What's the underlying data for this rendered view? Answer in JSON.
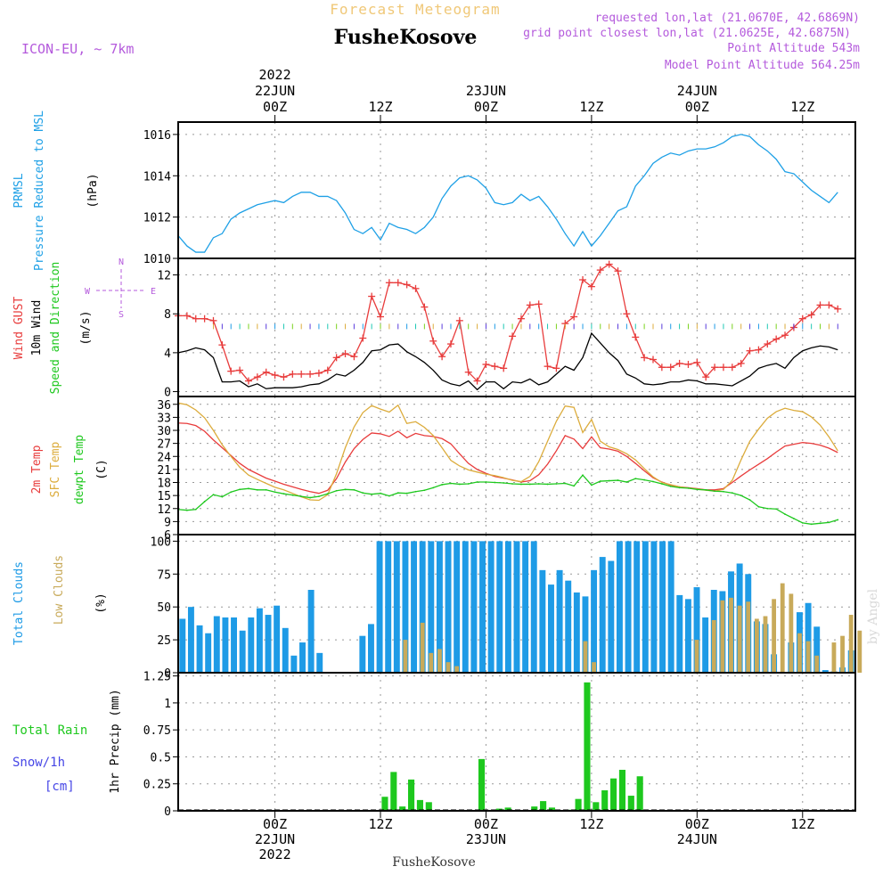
{
  "header": {
    "supertitle": "Forecast Meteogram",
    "station": "FusheKosove",
    "model": "ICON-EU, ~ 7km",
    "requested": "requested lon,lat (21.0670E, 42.6869N)",
    "closest": "grid point closest lon,lat (21.0625E, 42.6875N)",
    "point_alt": "Point Altitude 543m",
    "model_alt": "Model Point Altitude 564.25m",
    "footer_station": "FusheKosove",
    "credit": "by Angel"
  },
  "time_axis": {
    "top": [
      {
        "t": 0,
        "lines": [
          "2022",
          "22JUN",
          "00Z"
        ]
      },
      {
        "t": 12,
        "lines": [
          "12Z"
        ]
      },
      {
        "t": 24,
        "lines": [
          "23JUN",
          "00Z"
        ]
      },
      {
        "t": 36,
        "lines": [
          "12Z"
        ]
      },
      {
        "t": 48,
        "lines": [
          "24JUN",
          "00Z"
        ]
      },
      {
        "t": 60,
        "lines": [
          "12Z"
        ]
      }
    ],
    "bottom": [
      {
        "t": 0,
        "lines": [
          "00Z",
          "22JUN",
          "2022"
        ]
      },
      {
        "t": 12,
        "lines": [
          "12Z"
        ]
      },
      {
        "t": 24,
        "lines": [
          "00Z",
          "23JUN"
        ]
      },
      {
        "t": 36,
        "lines": [
          "12Z"
        ]
      },
      {
        "t": 48,
        "lines": [
          "00Z",
          "24JUN"
        ]
      },
      {
        "t": 60,
        "lines": [
          "12Z"
        ]
      }
    ],
    "range_hours": [
      -11,
      66
    ]
  },
  "panel_labels": {
    "pressure": [
      "PRMSL",
      "Pressure Reduced to MSL"
    ],
    "pressure_unit": "(hPa)",
    "wind_gust": "Wind GUST",
    "wind_10m": "10m Wind",
    "wind_dir": "Speed and Direction",
    "wind_unit": "(m/s)",
    "compass": {
      "n": "N",
      "s": "S",
      "w": "W",
      "e": "E"
    },
    "temp_2m": "2m Temp",
    "temp_sfc": "SFC Temp",
    "temp_dew": "dewpt Temp",
    "temp_unit": "(C)",
    "cloud_total": "Total Clouds",
    "cloud_low": "Low Clouds",
    "cloud_unit": "(%)",
    "rain_total": "Total  Rain",
    "rain_snow": "Snow/1h",
    "rain_snow_unit": "[cm]",
    "rain_axis": "1hr Precip (mm)"
  },
  "chart_data": [
    {
      "type": "line",
      "panel": "pressure",
      "ylim": [
        1010,
        1016.6
      ],
      "yticks": [
        1010,
        1012,
        1014,
        1016
      ],
      "series": [
        {
          "name": "PRMSL",
          "color": "#1ea0e6",
          "values": [
            1011.1,
            1010.6,
            1010.3,
            1010.3,
            1011.0,
            1011.2,
            1011.9,
            1012.2,
            1012.4,
            1012.6,
            1012.7,
            1012.8,
            1012.7,
            1013.0,
            1013.2,
            1013.2,
            1013.0,
            1013.0,
            1012.8,
            1012.2,
            1011.4,
            1011.2,
            1011.5,
            1010.9,
            1011.7,
            1011.5,
            1011.4,
            1011.2,
            1011.5,
            1012.0,
            1012.9,
            1013.5,
            1013.9,
            1014.0,
            1013.8,
            1013.4,
            1012.7,
            1012.6,
            1012.7,
            1013.1,
            1012.8,
            1013.0,
            1012.5,
            1011.9,
            1011.2,
            1010.6,
            1011.3,
            1010.6,
            1011.1,
            1011.7,
            1012.3,
            1012.5,
            1013.5,
            1014.0,
            1014.6,
            1014.9,
            1015.1,
            1015.0,
            1015.2,
            1015.3,
            1015.3,
            1015.4,
            1015.6,
            1015.9,
            1016.0,
            1015.9,
            1015.5,
            1015.2,
            1014.8,
            1014.2,
            1014.1,
            1013.7,
            1013.3,
            1013.0,
            1012.7,
            1013.2
          ]
        }
      ]
    },
    {
      "type": "line",
      "panel": "wind",
      "ylim": [
        -0.5,
        13.7
      ],
      "yticks": [
        0,
        4,
        8,
        12
      ],
      "series": [
        {
          "name": "Wind GUST",
          "color": "#e83c3c",
          "values": [
            7.8,
            7.8,
            7.5,
            7.5,
            7.3,
            4.8,
            2.1,
            2.2,
            1.1,
            1.5,
            2.0,
            1.7,
            1.5,
            1.8,
            1.8,
            1.8,
            1.9,
            2.2,
            3.5,
            3.9,
            3.6,
            5.5,
            9.8,
            7.7,
            11.2,
            11.2,
            11.0,
            10.6,
            8.7,
            5.2,
            3.6,
            4.9,
            7.3,
            2.0,
            1.1,
            2.8,
            2.6,
            2.4,
            5.7,
            7.5,
            8.9,
            9.0,
            2.6,
            2.4,
            7.0,
            7.7,
            11.5,
            10.8,
            12.5,
            13.1,
            12.4,
            8.0,
            5.6,
            3.5,
            3.3,
            2.5,
            2.5,
            2.9,
            2.8,
            3.0,
            1.5,
            2.5,
            2.5,
            2.5,
            2.9,
            4.2,
            4.3,
            4.9,
            5.4,
            5.8,
            6.6,
            7.5,
            7.9,
            8.9,
            8.9,
            8.5
          ]
        },
        {
          "name": "10m Wind",
          "color": "#000000",
          "values": [
            4.0,
            4.2,
            4.5,
            4.3,
            3.5,
            1.0,
            1.0,
            1.1,
            0.5,
            0.8,
            0.3,
            0.4,
            0.4,
            0.4,
            0.5,
            0.7,
            0.8,
            1.2,
            1.8,
            1.6,
            2.2,
            3.0,
            4.2,
            4.3,
            4.8,
            4.9,
            4.1,
            3.6,
            3.0,
            2.2,
            1.2,
            0.8,
            0.6,
            1.1,
            0.2,
            1.0,
            1.0,
            0.3,
            1.0,
            0.9,
            1.3,
            0.7,
            1.0,
            1.8,
            2.6,
            2.2,
            3.5,
            6.0,
            5.0,
            4.0,
            3.2,
            1.8,
            1.4,
            0.8,
            0.7,
            0.8,
            1.0,
            1.0,
            1.2,
            1.1,
            0.8,
            0.8,
            0.7,
            0.6,
            1.1,
            1.6,
            2.4,
            2.7,
            2.9,
            2.4,
            3.5,
            4.2,
            4.5,
            4.7,
            4.6,
            4.3
          ]
        }
      ]
    },
    {
      "type": "line",
      "panel": "temperature",
      "ylim": [
        6,
        37.8
      ],
      "yticks": [
        6,
        9,
        12,
        15,
        18,
        21,
        24,
        27,
        30,
        33,
        36
      ],
      "series": [
        {
          "name": "2m Temp",
          "color": "#e83c3c",
          "values": [
            31.7,
            31.6,
            31.1,
            29.8,
            27.8,
            26.0,
            24.2,
            22.4,
            21.0,
            20.0,
            19.0,
            18.3,
            17.6,
            17.0,
            16.4,
            15.9,
            15.5,
            16.2,
            18.9,
            22.7,
            25.8,
            27.9,
            29.4,
            29.2,
            28.6,
            29.8,
            28.3,
            29.3,
            28.8,
            28.6,
            28.1,
            26.9,
            24.6,
            22.4,
            21.0,
            20.1,
            19.4,
            19.0,
            18.6,
            18.1,
            18.4,
            19.8,
            22.2,
            25.3,
            28.8,
            28.0,
            25.8,
            28.5,
            26.0,
            25.7,
            25.2,
            24.0,
            22.4,
            20.7,
            19.1,
            18.1,
            17.4,
            17.0,
            16.8,
            16.6,
            16.3,
            16.3,
            16.6,
            18.0,
            19.5,
            20.9,
            22.2,
            23.5,
            25.0,
            26.4,
            26.8,
            27.2,
            27.0,
            26.6,
            25.9,
            24.9
          ]
        },
        {
          "name": "SFC Temp",
          "color": "#dcac3c",
          "values": [
            36.3,
            35.9,
            34.7,
            32.9,
            30.0,
            26.7,
            24.0,
            21.5,
            19.7,
            18.7,
            17.8,
            16.9,
            16.3,
            15.5,
            14.7,
            14.0,
            13.9,
            15.2,
            20.0,
            26.0,
            30.8,
            34.1,
            35.7,
            34.9,
            34.2,
            35.8,
            31.6,
            32.0,
            30.7,
            28.8,
            26.0,
            23.1,
            21.8,
            20.9,
            20.4,
            19.9,
            19.6,
            19.1,
            18.5,
            18.2,
            19.4,
            22.8,
            27.5,
            32.1,
            35.6,
            35.3,
            29.5,
            32.5,
            27.5,
            26.2,
            25.6,
            24.6,
            23.2,
            21.2,
            19.3,
            18.0,
            17.5,
            17.0,
            16.7,
            16.5,
            16.2,
            16.0,
            16.4,
            18.5,
            23.2,
            27.5,
            30.3,
            32.8,
            34.3,
            35.1,
            34.6,
            34.3,
            33.1,
            31.2,
            28.5,
            25.3
          ]
        },
        {
          "name": "dewpt Temp",
          "color": "#1ec81e",
          "values": [
            11.8,
            11.6,
            11.8,
            13.6,
            15.2,
            14.7,
            15.8,
            16.4,
            16.6,
            16.3,
            16.3,
            15.8,
            15.4,
            15.1,
            14.8,
            14.5,
            14.8,
            15.4,
            16.1,
            16.4,
            16.3,
            15.6,
            15.3,
            15.5,
            14.9,
            15.6,
            15.5,
            15.9,
            16.2,
            16.8,
            17.5,
            17.8,
            17.6,
            17.7,
            18.1,
            18.1,
            18.0,
            17.9,
            17.7,
            17.6,
            17.6,
            17.7,
            17.6,
            17.7,
            17.8,
            17.2,
            19.7,
            17.4,
            18.3,
            18.4,
            18.5,
            18.1,
            18.9,
            18.6,
            18.2,
            17.7,
            17.1,
            16.8,
            16.7,
            16.4,
            16.3,
            16.0,
            15.9,
            15.6,
            15.0,
            14.0,
            12.4,
            12.0,
            11.9,
            10.7,
            9.7,
            8.7,
            8.4,
            8.6,
            8.8,
            9.4
          ]
        }
      ]
    },
    {
      "type": "bar",
      "panel": "clouds",
      "ylim": [
        0,
        105
      ],
      "yticks": [
        0,
        25,
        50,
        75,
        100
      ],
      "series": [
        {
          "name": "Total Clouds",
          "color": "#1e9be6",
          "values": [
            41,
            50,
            36,
            30,
            43,
            42,
            42,
            32,
            42,
            49,
            44,
            51,
            34,
            13,
            23,
            63,
            15,
            0,
            0,
            0,
            0,
            28,
            37,
            100,
            100,
            100,
            100,
            100,
            100,
            100,
            100,
            100,
            100,
            100,
            100,
            100,
            100,
            100,
            100,
            100,
            100,
            100,
            78,
            67,
            78,
            70,
            61,
            58,
            78,
            88,
            85,
            100,
            100,
            100,
            100,
            100,
            100,
            100,
            59,
            56,
            65,
            42,
            63,
            62,
            77,
            83,
            75,
            39,
            37,
            14,
            0,
            23,
            46,
            53,
            35,
            2,
            1,
            4,
            17
          ]
        },
        {
          "name": "Low Clouds",
          "color": "#c8aa5a",
          "values": [
            0,
            0,
            0,
            0,
            0,
            0,
            0,
            0,
            0,
            0,
            0,
            0,
            0,
            0,
            0,
            0,
            0,
            0,
            0,
            0,
            0,
            0,
            0,
            0,
            0,
            0,
            25,
            0,
            38,
            15,
            18,
            8,
            5,
            0,
            0,
            0,
            0,
            0,
            0,
            0,
            0,
            0,
            0,
            0,
            0,
            0,
            0,
            24,
            8,
            0,
            0,
            0,
            0,
            0,
            0,
            0,
            0,
            0,
            0,
            0,
            25,
            0,
            40,
            55,
            57,
            51,
            54,
            41,
            43,
            56,
            68,
            60,
            30,
            24,
            13,
            0,
            23,
            28,
            44,
            32,
            0,
            0,
            0,
            0
          ]
        }
      ]
    },
    {
      "type": "bar",
      "panel": "precipitation",
      "ylim": [
        0,
        1.28
      ],
      "yticks": [
        0,
        0.25,
        0.5,
        0.75,
        1,
        1.25
      ],
      "series": [
        {
          "name": "Total Rain",
          "color": "#1ec81e",
          "values": [
            0,
            0,
            0,
            0,
            0,
            0,
            0,
            0,
            0,
            0,
            0,
            0,
            0,
            0,
            0,
            0,
            0,
            0,
            0,
            0,
            0,
            0,
            0,
            0.13,
            0.36,
            0.04,
            0.29,
            0.1,
            0.08,
            0,
            0,
            0,
            0,
            0,
            0.48,
            0,
            0.02,
            0.03,
            0,
            0,
            0.04,
            0.09,
            0.03,
            0,
            0.01,
            0.11,
            1.19,
            0.08,
            0.19,
            0.3,
            0.38,
            0.14,
            0.32,
            0,
            0,
            0,
            0,
            0,
            0,
            0,
            0,
            0,
            0,
            0,
            0,
            0,
            0,
            0,
            0,
            0,
            0,
            0,
            0,
            0,
            0,
            0,
            0
          ]
        }
      ]
    }
  ]
}
